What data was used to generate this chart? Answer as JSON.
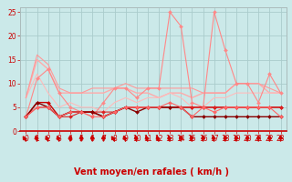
{
  "background_color": "#cbe9e9",
  "grid_color": "#aacccc",
  "xlabel": "Vent moyen/en rafales ( km/h )",
  "xlim": [
    -0.5,
    23.5
  ],
  "ylim": [
    0,
    26
  ],
  "yticks": [
    0,
    5,
    10,
    15,
    20,
    25
  ],
  "xticks": [
    0,
    1,
    2,
    3,
    4,
    5,
    6,
    7,
    8,
    9,
    10,
    11,
    12,
    13,
    14,
    15,
    16,
    17,
    18,
    19,
    20,
    21,
    22,
    23
  ],
  "lines": [
    {
      "x": [
        0,
        1,
        2,
        3,
        4,
        5,
        6,
        7,
        8,
        9,
        10,
        11,
        12,
        13,
        14,
        15,
        16,
        17,
        18,
        19,
        20,
        21,
        22,
        23
      ],
      "y": [
        3,
        11,
        13,
        8,
        5,
        4,
        3,
        6,
        9,
        9,
        7,
        9,
        9,
        25,
        22,
        6,
        5,
        25,
        17,
        10,
        10,
        6,
        12,
        8
      ],
      "color": "#ff8888",
      "lw": 0.8,
      "marker": "D",
      "ms": 2.0,
      "zorder": 3
    },
    {
      "x": [
        0,
        1,
        2,
        3,
        4,
        5,
        6,
        7,
        8,
        9,
        10,
        11,
        12,
        13,
        14,
        15,
        16,
        17,
        18,
        19,
        20,
        21,
        22,
        23
      ],
      "y": [
        7,
        15,
        13,
        8,
        8,
        8,
        8,
        8,
        9,
        9,
        8,
        8,
        7,
        8,
        8,
        7,
        8,
        8,
        8,
        10,
        10,
        10,
        8,
        8
      ],
      "color": "#ffaaaa",
      "lw": 1.0,
      "marker": null,
      "ms": 0,
      "zorder": 2
    },
    {
      "x": [
        0,
        1,
        2,
        3,
        4,
        5,
        6,
        7,
        8,
        9,
        10,
        11,
        12,
        13,
        14,
        15,
        16,
        17,
        18,
        19,
        20,
        21,
        22,
        23
      ],
      "y": [
        7,
        12,
        8,
        5,
        6,
        5,
        5,
        4,
        6,
        7,
        6,
        7,
        7,
        8,
        7,
        5,
        5,
        7,
        7,
        8,
        8,
        8,
        8,
        8
      ],
      "color": "#ffbbbb",
      "lw": 0.8,
      "marker": null,
      "ms": 0,
      "zorder": 2
    },
    {
      "x": [
        0,
        1,
        2,
        3,
        4,
        5,
        6,
        7,
        8,
        9,
        10,
        11,
        12,
        13,
        14,
        15,
        16,
        17,
        18,
        19,
        20,
        21,
        22,
        23
      ],
      "y": [
        3,
        6,
        6,
        3,
        4,
        4,
        4,
        3,
        4,
        5,
        5,
        5,
        5,
        5,
        5,
        5,
        5,
        5,
        5,
        5,
        5,
        5,
        5,
        5
      ],
      "color": "#cc0000",
      "lw": 1.0,
      "marker": "D",
      "ms": 2.0,
      "zorder": 4
    },
    {
      "x": [
        0,
        1,
        2,
        3,
        4,
        5,
        6,
        7,
        8,
        9,
        10,
        11,
        12,
        13,
        14,
        15,
        16,
        17,
        18,
        19,
        20,
        21,
        22,
        23
      ],
      "y": [
        3,
        5,
        5,
        3,
        3,
        4,
        4,
        4,
        4,
        5,
        5,
        5,
        5,
        5,
        5,
        5,
        5,
        5,
        5,
        5,
        5,
        5,
        5,
        5
      ],
      "color": "#dd2222",
      "lw": 0.8,
      "marker": "D",
      "ms": 2.0,
      "zorder": 4
    },
    {
      "x": [
        0,
        1,
        2,
        3,
        4,
        5,
        6,
        7,
        8,
        9,
        10,
        11,
        12,
        13,
        14,
        15,
        16,
        17,
        18,
        19,
        20,
        21,
        22,
        23
      ],
      "y": [
        3,
        6,
        5,
        3,
        4,
        4,
        4,
        3,
        4,
        5,
        4,
        5,
        5,
        5,
        5,
        3,
        3,
        3,
        3,
        3,
        3,
        3,
        3,
        3
      ],
      "color": "#880000",
      "lw": 1.0,
      "marker": "D",
      "ms": 2.0,
      "zorder": 4
    },
    {
      "x": [
        0,
        1,
        2,
        3,
        4,
        5,
        6,
        7,
        8,
        9,
        10,
        11,
        12,
        13,
        14,
        15,
        16,
        17,
        18,
        19,
        20,
        21,
        22,
        23
      ],
      "y": [
        7,
        16,
        14,
        9,
        8,
        8,
        9,
        9,
        9,
        10,
        9,
        9,
        9,
        9,
        9,
        9,
        8,
        8,
        8,
        10,
        10,
        10,
        9,
        8
      ],
      "color": "#ff9999",
      "lw": 0.8,
      "marker": null,
      "ms": 0,
      "zorder": 2
    },
    {
      "x": [
        0,
        1,
        2,
        3,
        4,
        5,
        6,
        7,
        8,
        9,
        10,
        11,
        12,
        13,
        14,
        15,
        16,
        17,
        18,
        19,
        20,
        21,
        22,
        23
      ],
      "y": [
        3,
        5,
        5,
        3,
        4,
        4,
        3,
        3,
        4,
        5,
        5,
        5,
        5,
        6,
        5,
        3,
        5,
        4,
        5,
        5,
        5,
        5,
        5,
        3
      ],
      "color": "#ff6666",
      "lw": 0.8,
      "marker": "D",
      "ms": 2.0,
      "zorder": 4
    }
  ],
  "arrow_color": "#cc0000",
  "tick_label_color": "#cc0000",
  "xlabel_color": "#cc0000",
  "xlabel_fontsize": 7,
  "tick_fontsize": 5.5,
  "arrow_angles": [
    225,
    200,
    215,
    210,
    180,
    180,
    180,
    180,
    225,
    210,
    200,
    210,
    215,
    200,
    180,
    195,
    180,
    200,
    180,
    180,
    180,
    180,
    180,
    180
  ]
}
